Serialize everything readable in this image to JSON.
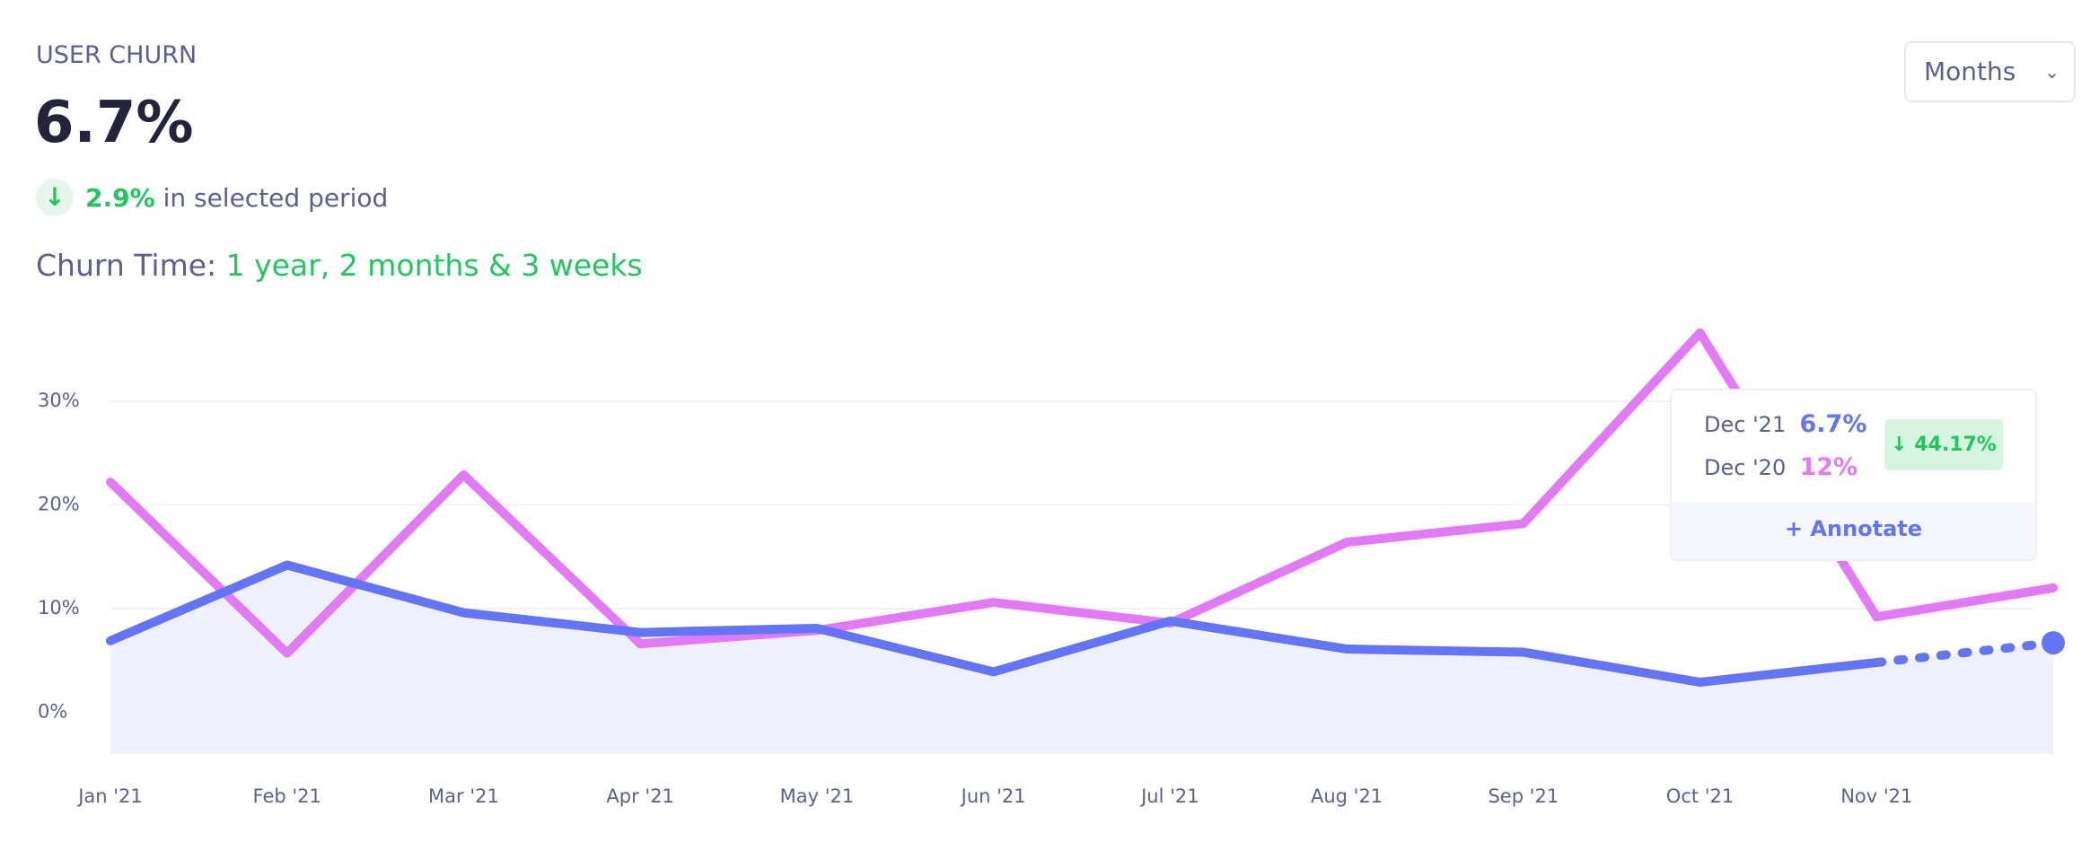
{
  "header": {
    "title": "USER CHURN",
    "value": "6.7%",
    "change": "2.9%",
    "change_text": "in selected period",
    "churn_time_label": "Churn Time:",
    "churn_time": "1 year, 2 months & 3 weeks",
    "period_select": "Months"
  },
  "tooltip": {
    "rows": [
      {
        "label": "Dec '21",
        "value": "6.7%"
      },
      {
        "label": "Dec '20",
        "value": "12%"
      }
    ],
    "badge": "↓ 44.17%",
    "action": "+ Annotate"
  },
  "chart_data": {
    "type": "line",
    "categories": [
      "Jan '21",
      "Feb '21",
      "Mar '21",
      "Apr '21",
      "May '21",
      "Jun '21",
      "Jul '21",
      "Aug '21",
      "Sep '21",
      "Oct '21",
      "Nov '21",
      null
    ],
    "series": [
      {
        "color": "#6374f5",
        "values": [
          6.9,
          14.2,
          9.6,
          7.7,
          8.1,
          3.9,
          8.8,
          6.1,
          5.8,
          2.9,
          4.8,
          6.7
        ]
      },
      {
        "color": "#e27af5",
        "values": [
          22.2,
          5.7,
          22.9,
          6.6,
          7.9,
          10.6,
          8.6,
          16.4,
          18.2,
          36.6,
          9.2,
          12
        ]
      }
    ],
    "ylim": [
      -4,
      40
    ],
    "yticks": [
      {
        "value": 0,
        "label": "0%"
      },
      {
        "value": 10,
        "label": "10%"
      },
      {
        "value": 20,
        "label": "20%"
      },
      {
        "value": 30,
        "label": "30%"
      }
    ],
    "grid": true
  }
}
